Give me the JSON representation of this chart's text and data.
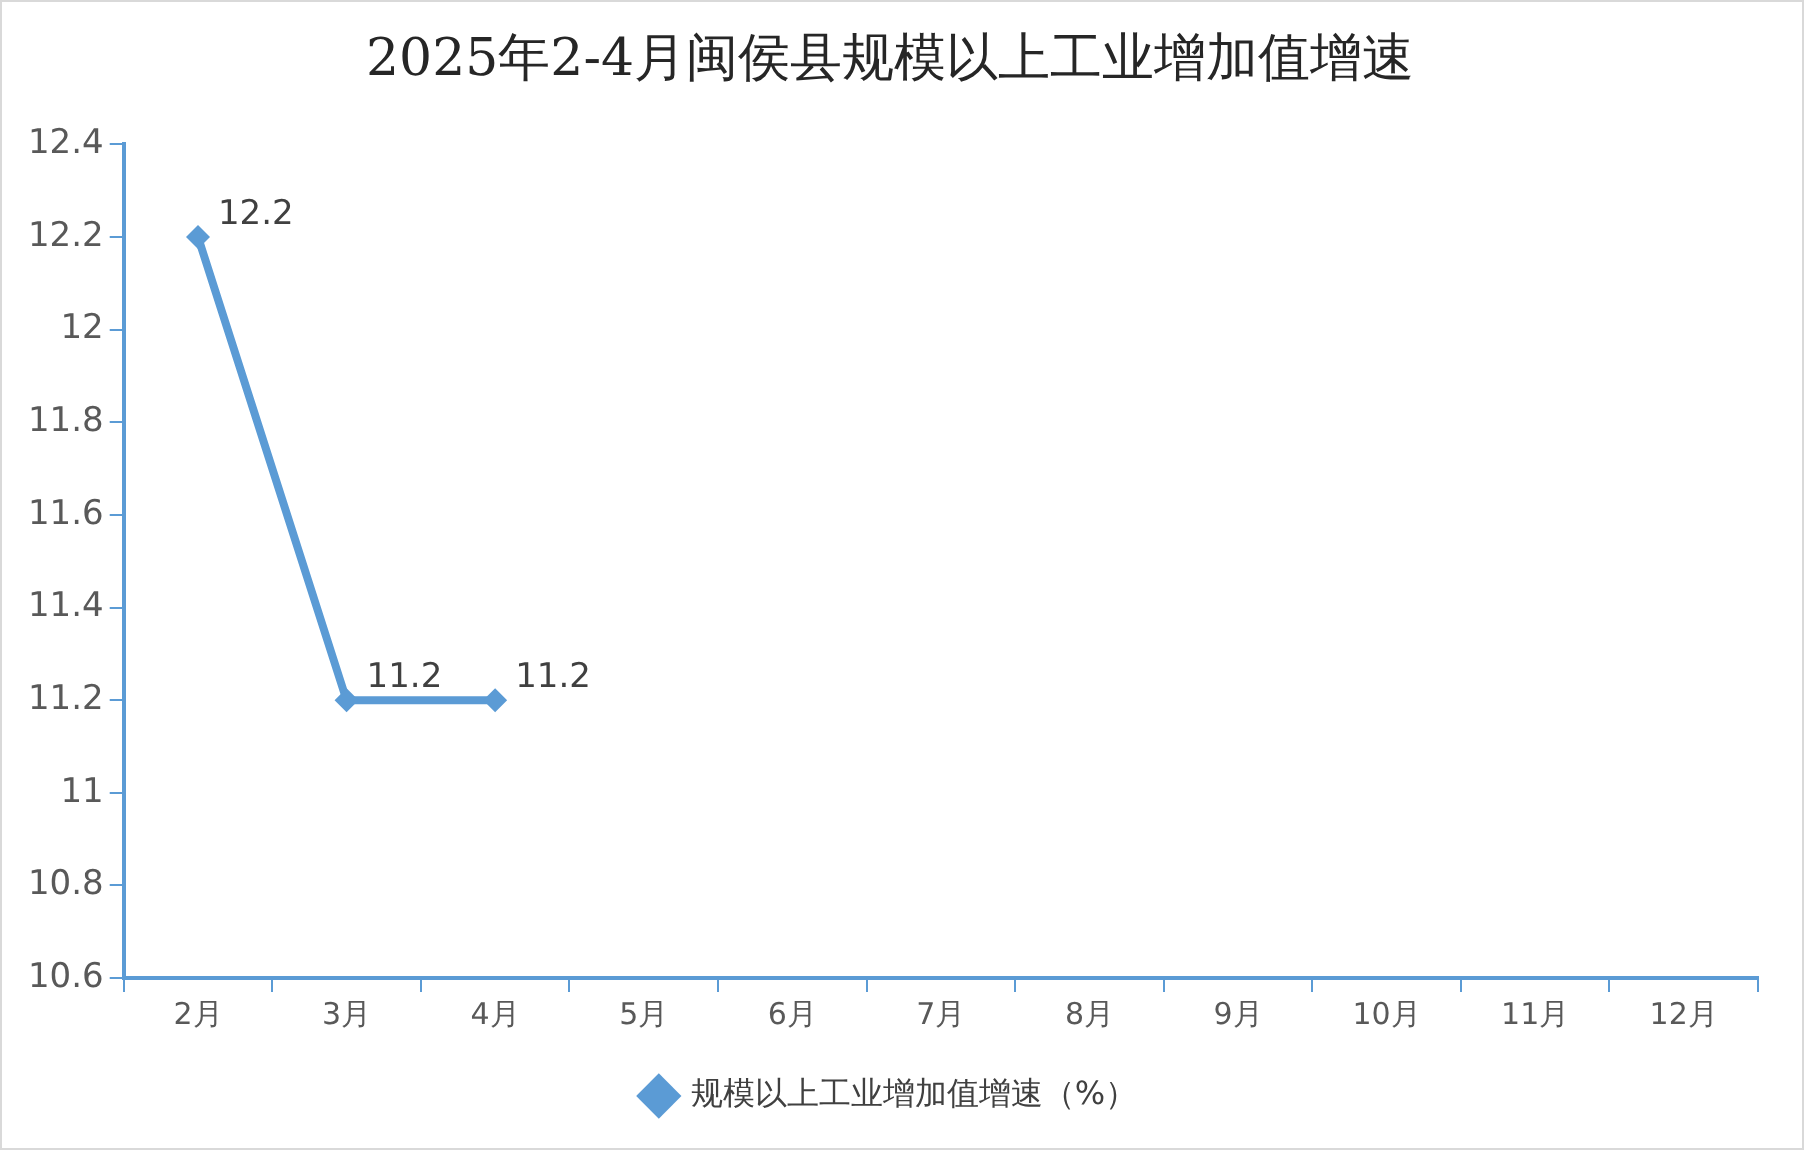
{
  "chart_data": {
    "type": "line",
    "title": "2025年2-4月闽侯县规模以上工业增加值增速",
    "categories": [
      "2月",
      "3月",
      "4月",
      "5月",
      "6月",
      "7月",
      "8月",
      "9月",
      "10月",
      "11月",
      "12月"
    ],
    "series": [
      {
        "name": "规模以上工业增加值增速（%）",
        "color": "#5b9bd5",
        "values": [
          12.2,
          11.2,
          11.2,
          null,
          null,
          null,
          null,
          null,
          null,
          null,
          null
        ]
      }
    ],
    "ylim": [
      10.6,
      12.4
    ],
    "yticks": [
      10.6,
      10.8,
      11,
      11.2,
      11.4,
      11.6,
      11.8,
      12,
      12.2,
      12.4
    ],
    "grid": false,
    "legend": "bottom",
    "marker": "diamond",
    "line_style": "solid",
    "data_labels": true
  }
}
